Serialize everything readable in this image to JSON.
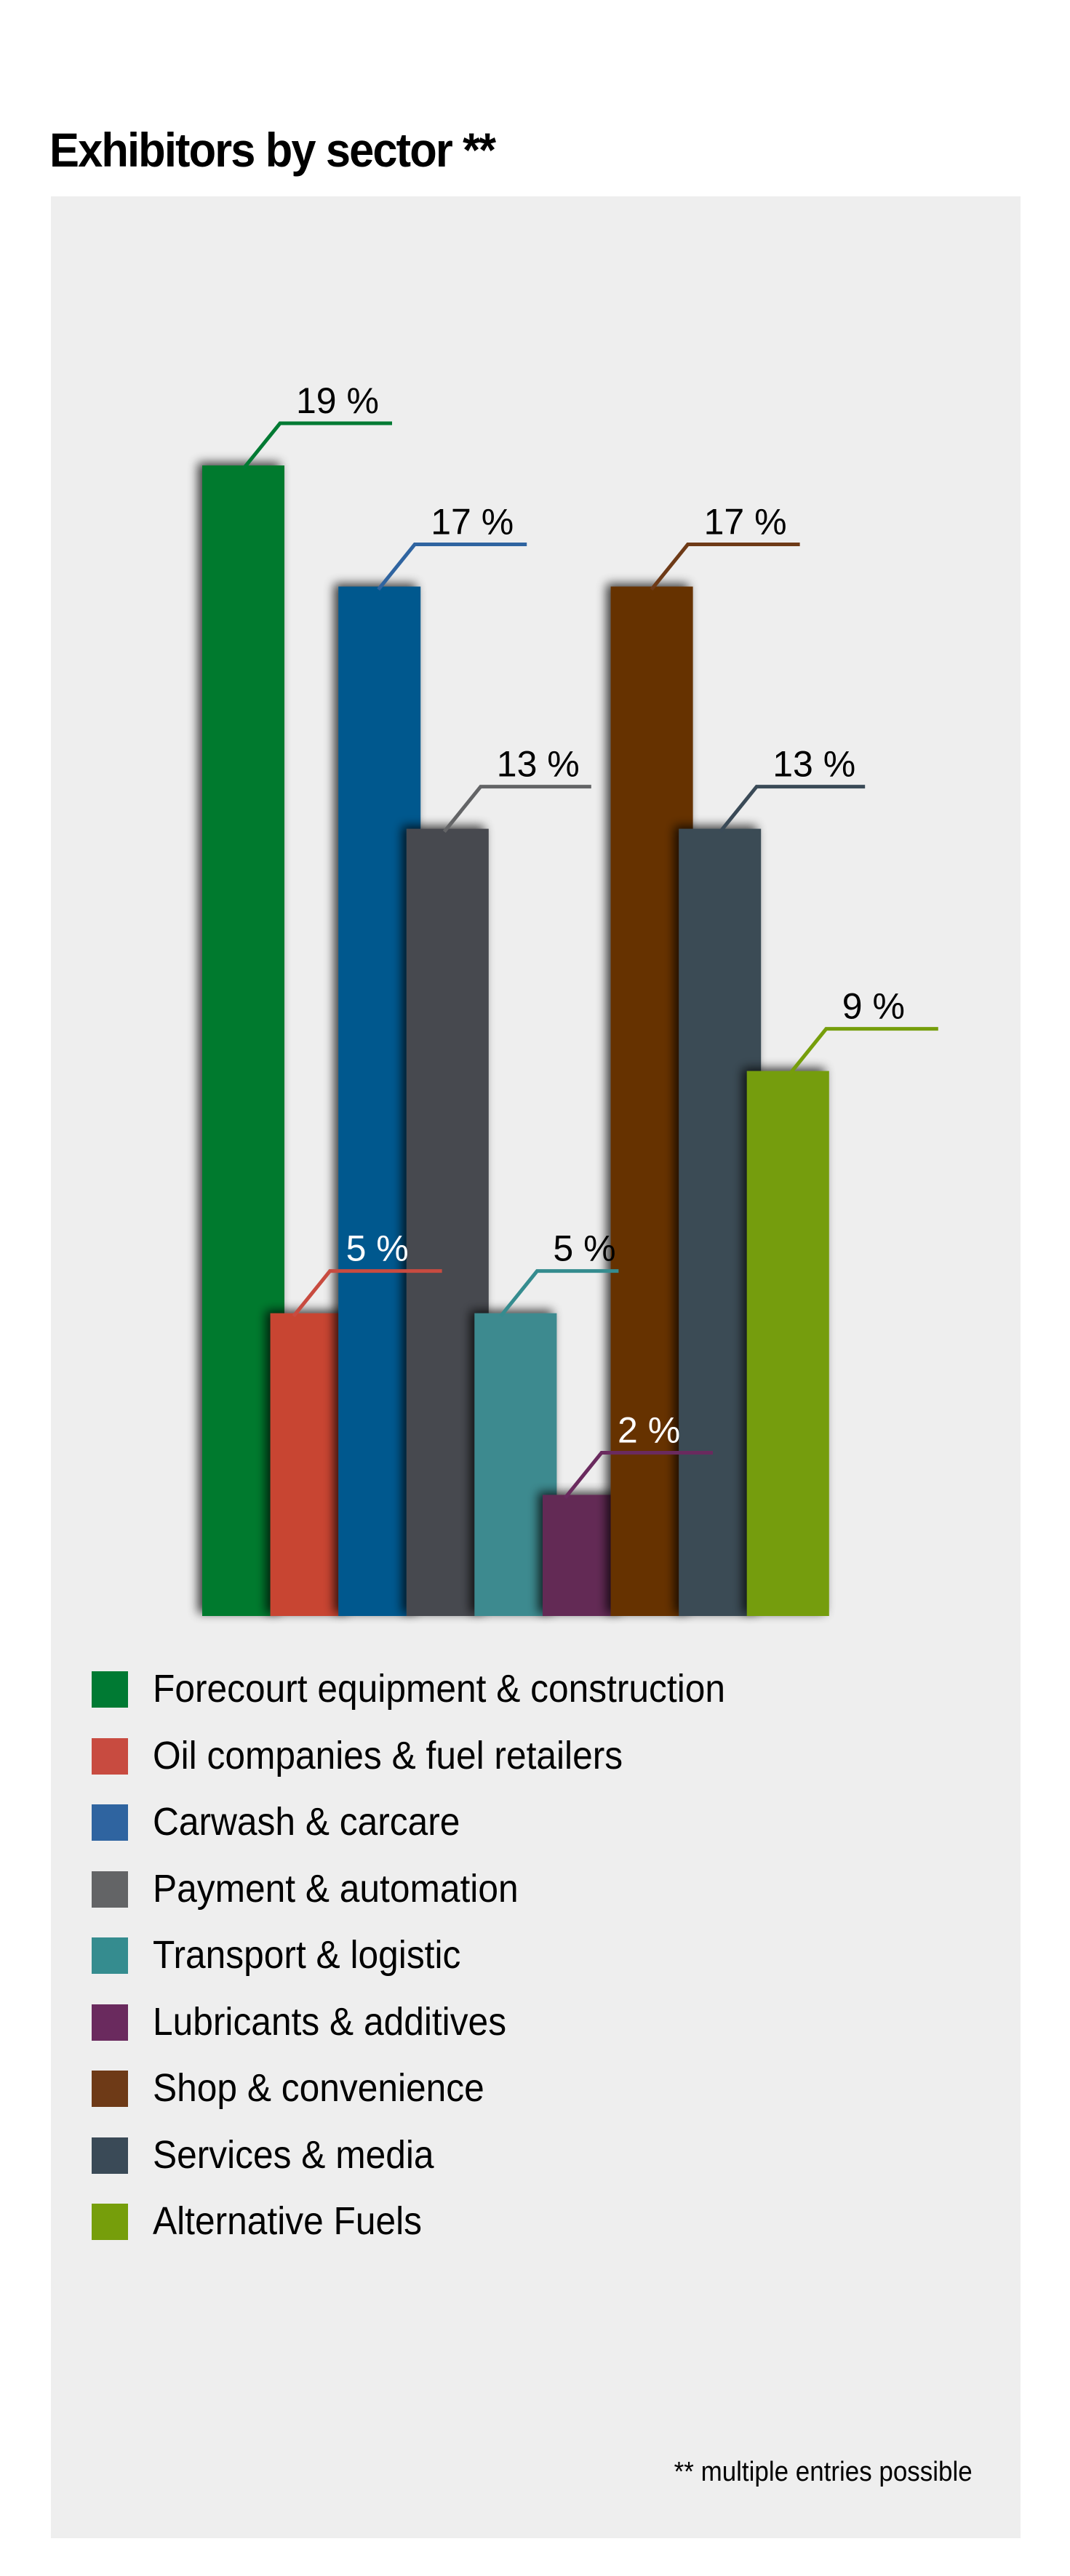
{
  "chart_data": {
    "type": "bar",
    "title": "Exhibitors by sector **",
    "footnote": "** multiple entries possible",
    "unit": "%",
    "legend_position": "bottom",
    "grid": false,
    "ylim": [
      0,
      19
    ],
    "categories": [
      "Forecourt equipment & construction",
      "Oil companies & fuel retailers",
      "Carwash & carcare",
      "Payment & automation",
      "Transport & logistic",
      "Lubricants & additives",
      "Shop & convenience",
      "Services & media",
      "Alternative Fuels"
    ],
    "values": [
      19,
      5,
      17,
      13,
      5,
      2,
      17,
      13,
      9
    ],
    "data_labels": [
      "19 %",
      "5 %",
      "17 %",
      "13 %",
      "5 %",
      "2 %",
      "17 %",
      "13 %",
      "9 %"
    ],
    "bar_colors": [
      "#007a2f",
      "#c84433",
      "#00588e",
      "#474a50",
      "#3d8a8f",
      "#632a54",
      "#663000",
      "#3a4c55",
      "#749d0c"
    ],
    "legend_colors": [
      "#007a33",
      "#c84b40",
      "#2f64a0",
      "#636466",
      "#358c8f",
      "#6a2a5e",
      "#6e3a17",
      "#3a4a57",
      "#769e0b"
    ],
    "label_text_colors": [
      "#000000",
      "#ffffff",
      "#000000",
      "#000000",
      "#000000",
      "#ffffff",
      "#000000",
      "#000000",
      "#000000"
    ]
  }
}
